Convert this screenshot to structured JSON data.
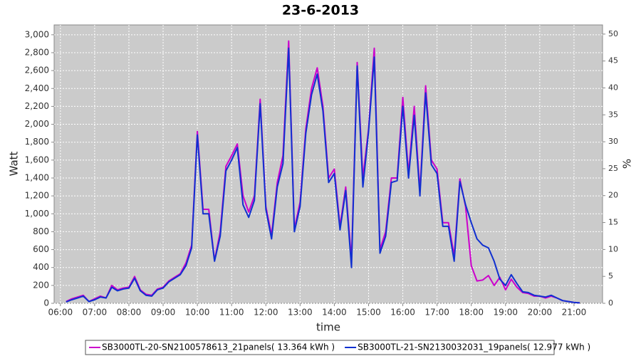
{
  "chart_data": {
    "type": "line",
    "title": "23-6-2013",
    "x_label": "time",
    "y_label": "Watt",
    "y2_label": "%",
    "x": [
      "06:10",
      "06:20",
      "06:30",
      "06:40",
      "06:50",
      "07:00",
      "07:10",
      "07:20",
      "07:30",
      "07:40",
      "07:50",
      "08:00",
      "08:10",
      "08:20",
      "08:30",
      "08:40",
      "08:50",
      "09:00",
      "09:10",
      "09:20",
      "09:30",
      "09:40",
      "09:50",
      "10:00",
      "10:10",
      "10:20",
      "10:30",
      "10:40",
      "10:50",
      "11:00",
      "11:10",
      "11:20",
      "11:30",
      "11:40",
      "11:50",
      "12:00",
      "12:10",
      "12:20",
      "12:30",
      "12:40",
      "12:50",
      "13:00",
      "13:10",
      "13:20",
      "13:30",
      "13:40",
      "13:50",
      "14:00",
      "14:10",
      "14:20",
      "14:30",
      "14:40",
      "14:50",
      "15:00",
      "15:10",
      "15:20",
      "15:30",
      "15:40",
      "15:50",
      "16:00",
      "16:10",
      "16:20",
      "16:30",
      "16:40",
      "16:50",
      "17:00",
      "17:10",
      "17:20",
      "17:30",
      "17:40",
      "17:50",
      "18:00",
      "18:10",
      "18:20",
      "18:30",
      "18:40",
      "18:50",
      "19:00",
      "19:10",
      "19:20",
      "19:30",
      "19:40",
      "19:50",
      "20:00",
      "20:10",
      "20:20",
      "20:30",
      "20:40",
      "20:50",
      "21:00",
      "21:10"
    ],
    "series": [
      {
        "name": "SB3000TL-20-SN2100578613_21panels( 13.364 kWh )",
        "color": "#cc00cc",
        "values": [
          20,
          50,
          70,
          90,
          20,
          50,
          80,
          60,
          200,
          150,
          170,
          180,
          300,
          150,
          100,
          90,
          160,
          180,
          250,
          290,
          330,
          450,
          650,
          1920,
          1050,
          1050,
          480,
          800,
          1530,
          1650,
          1780,
          1200,
          1020,
          1200,
          2280,
          1080,
          760,
          1350,
          1650,
          2930,
          830,
          1130,
          1950,
          2400,
          2630,
          2200,
          1400,
          1500,
          860,
          1300,
          480,
          2690,
          1400,
          1950,
          2850,
          600,
          800,
          1400,
          1400,
          2300,
          1450,
          2200,
          1250,
          2430,
          1600,
          1500,
          900,
          900,
          530,
          1390,
          1080,
          420,
          250,
          260,
          310,
          200,
          290,
          150,
          270,
          180,
          120,
          110,
          80,
          80,
          60,
          80,
          60,
          30,
          20,
          10,
          5
        ]
      },
      {
        "name": "SB3000TL-21-SN2130032031_19panels( 12.977 kWh )",
        "color": "#1030d0",
        "values": [
          15,
          40,
          60,
          80,
          20,
          40,
          70,
          60,
          180,
          140,
          160,
          170,
          280,
          140,
          90,
          80,
          150,
          170,
          240,
          280,
          320,
          420,
          620,
          1880,
          1000,
          1000,
          470,
          750,
          1480,
          1600,
          1740,
          1100,
          960,
          1150,
          2230,
          1050,
          720,
          1300,
          1560,
          2850,
          800,
          1080,
          1900,
          2330,
          2560,
          2150,
          1350,
          1450,
          820,
          1260,
          400,
          2650,
          1300,
          1920,
          2750,
          560,
          750,
          1350,
          1370,
          2200,
          1400,
          2100,
          1200,
          2350,
          1550,
          1450,
          860,
          860,
          470,
          1360,
          1100,
          900,
          720,
          650,
          620,
          470,
          270,
          200,
          320,
          220,
          130,
          120,
          90,
          80,
          70,
          90,
          60,
          30,
          20,
          10,
          5
        ]
      }
    ],
    "xlim": [
      "05:49",
      "21:50"
    ],
    "xticks": [
      "06:00",
      "07:00",
      "08:00",
      "09:00",
      "10:00",
      "11:00",
      "12:00",
      "13:00",
      "14:00",
      "15:00",
      "16:00",
      "17:00",
      "18:00",
      "19:00",
      "20:00",
      "21:00"
    ],
    "ylim": [
      0,
      3110
    ],
    "yticks": [
      0,
      200,
      400,
      600,
      800,
      {
        "value": 1000,
        "label": "1,000"
      },
      {
        "value": 1200,
        "label": "1,200"
      },
      {
        "value": 1400,
        "label": "1,400"
      },
      {
        "value": 1600,
        "label": "1,600"
      },
      {
        "value": 1800,
        "label": "1,800"
      },
      {
        "value": 2000,
        "label": "2,000"
      },
      {
        "value": 2200,
        "label": "2,200"
      },
      {
        "value": 2400,
        "label": "2,400"
      },
      {
        "value": 2600,
        "label": "2,600"
      },
      {
        "value": 2800,
        "label": "2,800"
      },
      {
        "value": 3000,
        "label": "3,000"
      }
    ],
    "y2lim": [
      0,
      51.7
    ],
    "y2ticks": [
      0,
      5,
      10,
      15,
      20,
      25,
      30,
      35,
      40,
      45,
      50
    ],
    "grid": true
  }
}
